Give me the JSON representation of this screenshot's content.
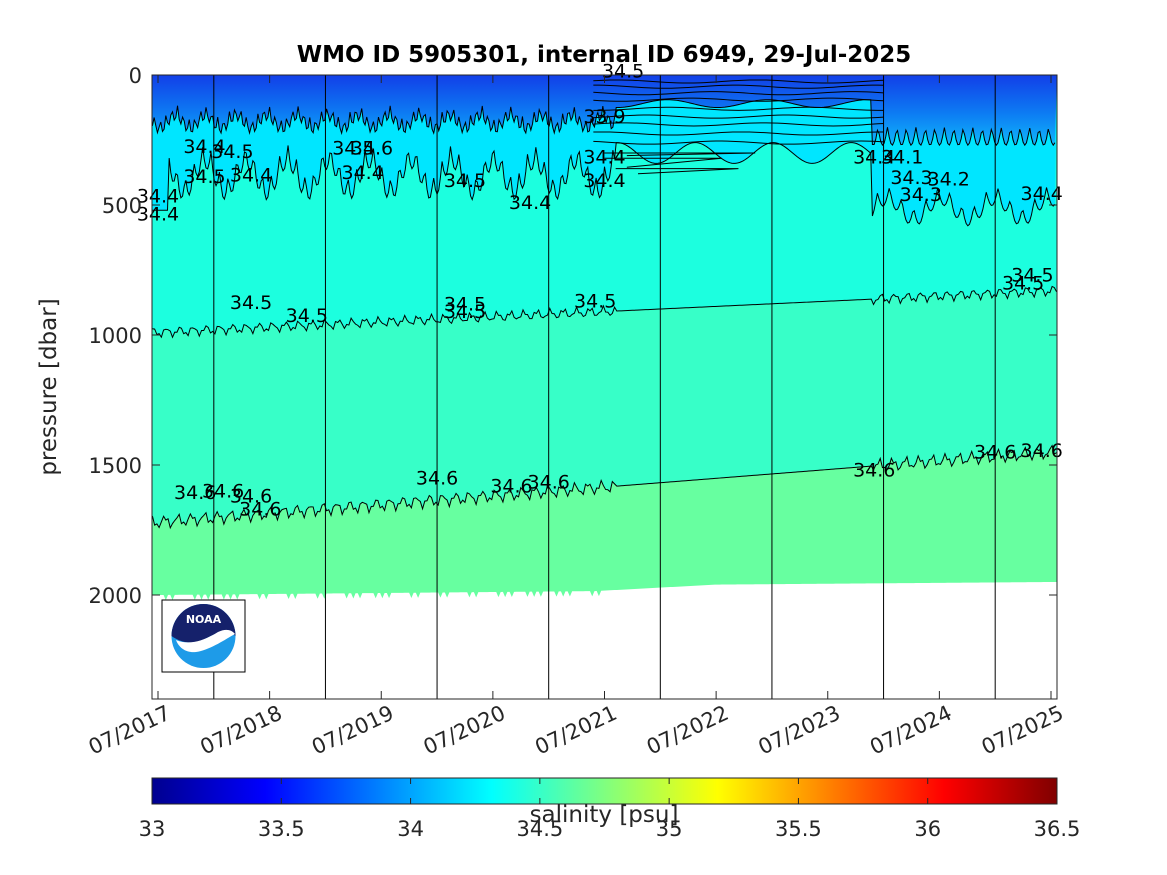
{
  "chart_data": {
    "type": "heatmap",
    "title": "WMO ID 5905301, internal ID 6949, 29-Jul-2025",
    "ylabel": "pressure [dbar]",
    "xlabel": "",
    "ylim": [
      2400,
      0
    ],
    "y_ticks": [
      0,
      500,
      1000,
      1500,
      2000
    ],
    "y_tick_labels": [
      "0",
      "500",
      "1000",
      "1500",
      "2000"
    ],
    "x_ticks": [
      "2017-07",
      "2018-07",
      "2019-07",
      "2020-07",
      "2021-07",
      "2022-07",
      "2023-07",
      "2024-07",
      "2025-07"
    ],
    "x_tick_labels": [
      "07/2017",
      "07/2018",
      "07/2019",
      "07/2020",
      "07/2021",
      "07/2022",
      "07/2023",
      "07/2024",
      "07/2025"
    ],
    "x_range": [
      "2017-07",
      "2025-07"
    ],
    "year_boundaries": [
      "2018-01",
      "2019-01",
      "2020-01",
      "2021-01",
      "2022-01",
      "2023-01",
      "2024-01",
      "2025-01"
    ],
    "colorbar": {
      "label": "salinity [psu]",
      "range": [
        33,
        36.5
      ],
      "ticks": [
        33,
        33.5,
        34,
        34.5,
        35,
        35.5,
        36,
        36.5
      ],
      "tick_labels": [
        "33",
        "33.5",
        "34",
        "34.5",
        "35",
        "35.5",
        "36",
        "36.5"
      ],
      "colormap": "jet"
    },
    "salinity_bands": [
      {
        "range": "<34.0",
        "color": "#0b5cf0"
      },
      {
        "range": "34.0-34.4",
        "color": "#00e6ff"
      },
      {
        "range": "34.4-34.5",
        "color": "#1cffdf"
      },
      {
        "range": "34.5-34.6",
        "color": "#37ffc8"
      },
      {
        "range": ">34.6",
        "color": "#67ffa0"
      }
    ],
    "isohalines": [
      {
        "value": 34.5,
        "depth_start_dbar": 990,
        "depth_end_dbar": 830
      },
      {
        "value": 34.6,
        "depth_start_dbar": 1720,
        "depth_end_dbar": 1450
      }
    ],
    "profile_max_depth_dbar": [
      {
        "date": "2017-07",
        "value": 2000
      },
      {
        "date": "2021-06",
        "value": 1985
      },
      {
        "date": "2022-07",
        "value": 1960
      },
      {
        "date": "2025-07",
        "value": 1950
      }
    ],
    "contour_labels": [
      {
        "text": "34.5",
        "date": "2018-05",
        "p": 900
      },
      {
        "text": "34.5",
        "date": "2018-11",
        "p": 950
      },
      {
        "text": "34.5",
        "date": "2020-04",
        "p": 905
      },
      {
        "text": "34.5",
        "date": "2020-04",
        "p": 935
      },
      {
        "text": "34.5",
        "date": "2021-06",
        "p": 895
      },
      {
        "text": "34.5",
        "date": "2025-05",
        "p": 795
      },
      {
        "text": "34.5",
        "date": "2025-04",
        "p": 825
      },
      {
        "text": "34.6",
        "date": "2017-11",
        "p": 1630
      },
      {
        "text": "34.6",
        "date": "2018-02",
        "p": 1625
      },
      {
        "text": "34.6",
        "date": "2018-05",
        "p": 1645
      },
      {
        "text": "34.6",
        "date": "2018-06",
        "p": 1695
      },
      {
        "text": "34.6",
        "date": "2020-01",
        "p": 1575
      },
      {
        "text": "34.6",
        "date": "2020-09",
        "p": 1605
      },
      {
        "text": "34.6",
        "date": "2021-01",
        "p": 1590
      },
      {
        "text": "34.6",
        "date": "2023-12",
        "p": 1545
      },
      {
        "text": "34.6",
        "date": "2025-01",
        "p": 1475
      },
      {
        "text": "34.6",
        "date": "2025-06",
        "p": 1470
      },
      {
        "text": "34.4",
        "date": "2017-07",
        "p": 560
      },
      {
        "text": "34.4",
        "date": "2018-05",
        "p": 410
      },
      {
        "text": "34.4",
        "date": "2019-05",
        "p": 400
      },
      {
        "text": "34.4",
        "date": "2020-11",
        "p": 515
      },
      {
        "text": "34.4",
        "date": "2021-07",
        "p": 340
      },
      {
        "text": "34.4",
        "date": "2021-07",
        "p": 430
      },
      {
        "text": "34.4",
        "date": "2023-12",
        "p": 340
      },
      {
        "text": "34.4",
        "date": "2025-06",
        "p": 480
      },
      {
        "text": "34.4",
        "date": "2017-07",
        "p": 490
      },
      {
        "text": "34.5",
        "date": "2017-12",
        "p": 415
      },
      {
        "text": "34.5",
        "date": "2020-04",
        "p": 430
      },
      {
        "text": "34.3",
        "date": "2024-04",
        "p": 420
      },
      {
        "text": "34.3",
        "date": "2024-05",
        "p": 485
      },
      {
        "text": "34.2",
        "date": "2024-08",
        "p": 425
      },
      {
        "text": "34.1",
        "date": "2024-03",
        "p": 340
      },
      {
        "text": "33.9",
        "date": "2021-07",
        "p": 185
      },
      {
        "text": "34.5",
        "date": "2021-09",
        "p": 10
      },
      {
        "text": "34.5",
        "date": "2019-04",
        "p": 305
      },
      {
        "text": "34.6",
        "date": "2019-06",
        "p": 305
      },
      {
        "text": "34.5",
        "date": "2018-03",
        "p": 320
      },
      {
        "text": "34.4",
        "date": "2017-12",
        "p": 300
      }
    ]
  }
}
